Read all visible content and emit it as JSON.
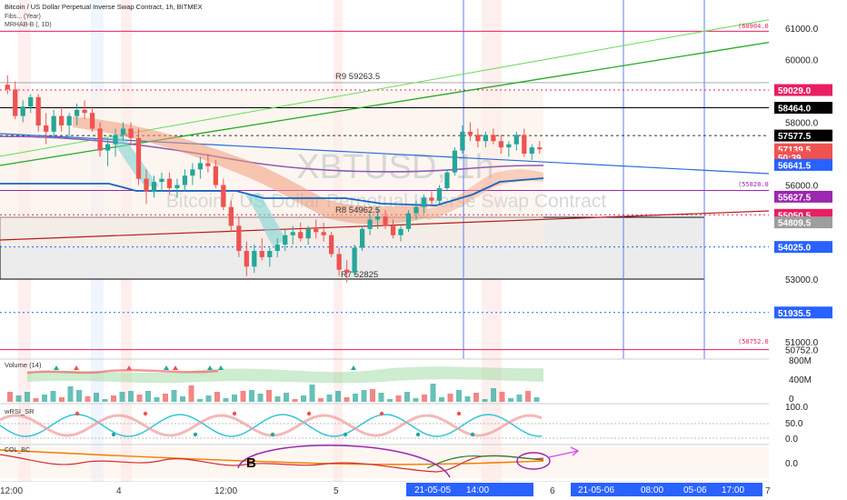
{
  "header": {
    "title": "Bitcoin / US Dollar Perpetual Inverse Swap Contract, 1h, BITMEX",
    "indicator_1": "Fibs... (Year)",
    "indicator_2": "MRHAB-B (, 1D)"
  },
  "watermark": {
    "symbol": "XBTUSD, 1h",
    "description": "Bitcoin / US Dollar Perpetual Inverse Swap Contract"
  },
  "colors": {
    "up": "#26a69a",
    "down": "#ef5350",
    "accent_blue": "#2962ff",
    "magenta": "#e91e63",
    "purple": "#9c27b0"
  },
  "chart_data": {
    "type": "candlestick",
    "symbol": "XBTUSD",
    "timeframe": "1h",
    "ylim": [
      50450,
      61900
    ],
    "y_axis_ticks": [
      "61000.0",
      "60000.0",
      "58000.0",
      "56000.0",
      "53000.0",
      "51000.0"
    ],
    "y_axis_values": [
      61000,
      60000,
      58000,
      56000,
      53000,
      51000
    ],
    "price_labels": [
      {
        "text": "59029.0",
        "value": 59029.0,
        "color": "#e91e63",
        "style": "fill"
      },
      {
        "text": "58464.0",
        "value": 58464.0,
        "color": "#000000",
        "style": "fill"
      },
      {
        "text": "57577.5",
        "value": 57577.5,
        "color": "#000000",
        "style": "fill"
      },
      {
        "text": "57139.5",
        "value": 57139.5,
        "color": "#ef5350",
        "style": "fill"
      },
      {
        "text": "50:39",
        "value": 56890,
        "color": "#ef5350",
        "style": "fill"
      },
      {
        "text": "56641.5",
        "value": 56641.5,
        "color": "#2962ff",
        "style": "fill"
      },
      {
        "text": "55627.5",
        "value": 55627.5,
        "color": "#9c27b0",
        "style": "fill"
      },
      {
        "text": "55050.5",
        "value": 55050.5,
        "color": "#e91e63",
        "style": "fill"
      },
      {
        "text": "54809.5",
        "value": 54809.5,
        "color": "#9e9e9e",
        "style": "fill"
      },
      {
        "text": "54025.0",
        "value": 54025.0,
        "color": "#2962ff",
        "style": "fill"
      },
      {
        "text": "51935.5",
        "value": 51935.5,
        "color": "#2962ff",
        "style": "fill"
      },
      {
        "text": "50752.0",
        "value": 50752.0,
        "color": "#e91e63",
        "style": "fill"
      }
    ],
    "fib_labels": [
      {
        "text": "(60904.0)",
        "value": 60904.0
      },
      {
        "text": "(55828.0)",
        "value": 55828.0
      },
      {
        "text": "(50752.0)",
        "value": 50752.0
      }
    ],
    "pivot_labels": [
      {
        "text": "R9 59263.5",
        "value": 59263.5
      },
      {
        "text": "R8 54962.5",
        "value": 54962.5
      },
      {
        "text": "R7 52825",
        "value": 52825
      }
    ],
    "x_axis_labels": [
      "12:00",
      "4",
      "12:00",
      "5",
      "6",
      "7"
    ],
    "x_axis_highlights": [
      "21-05-05",
      "14:00",
      "21-05-06",
      "08:00",
      "05-06",
      "17:00"
    ],
    "candles": [
      [
        59200,
        59500,
        58900,
        59050
      ],
      [
        59050,
        59300,
        58100,
        58200
      ],
      [
        58200,
        58700,
        58000,
        58500
      ],
      [
        58500,
        58900,
        58300,
        58800
      ],
      [
        58800,
        58900,
        57700,
        57900
      ],
      [
        57900,
        58300,
        57300,
        57700
      ],
      [
        57700,
        58400,
        57500,
        58200
      ],
      [
        58200,
        58500,
        57700,
        57900
      ],
      [
        57900,
        58300,
        57500,
        58200
      ],
      [
        58200,
        58600,
        57900,
        58400
      ],
      [
        58400,
        58700,
        58100,
        58300
      ],
      [
        58300,
        58500,
        57700,
        57800
      ],
      [
        57800,
        58000,
        56900,
        57100
      ],
      [
        57100,
        57500,
        56600,
        57300
      ],
      [
        57300,
        57800,
        56900,
        57600
      ],
      [
        57600,
        58000,
        57400,
        57800
      ],
      [
        57800,
        58000,
        57300,
        57500
      ],
      [
        57500,
        57800,
        56000,
        56200
      ],
      [
        56200,
        56500,
        55400,
        55800
      ],
      [
        55800,
        56300,
        55600,
        56100
      ],
      [
        56100,
        56400,
        55800,
        56200
      ],
      [
        56200,
        56400,
        55700,
        55900
      ],
      [
        55900,
        56200,
        55600,
        56000
      ],
      [
        56000,
        56500,
        55800,
        56300
      ],
      [
        56300,
        56700,
        56000,
        56500
      ],
      [
        56500,
        56900,
        56200,
        56700
      ],
      [
        56700,
        57000,
        56400,
        56600
      ],
      [
        56600,
        56800,
        55900,
        56000
      ],
      [
        56000,
        56200,
        55200,
        55300
      ],
      [
        55300,
        55500,
        54500,
        54700
      ],
      [
        54700,
        55000,
        53700,
        53900
      ],
      [
        53900,
        54200,
        53100,
        53400
      ],
      [
        53400,
        54100,
        53200,
        53900
      ],
      [
        53900,
        54300,
        53600,
        53700
      ],
      [
        53700,
        54000,
        53400,
        53900
      ],
      [
        53900,
        54300,
        53700,
        54100
      ],
      [
        54100,
        54600,
        53900,
        54400
      ],
      [
        54400,
        54700,
        54100,
        54500
      ],
      [
        54500,
        54800,
        54200,
        54300
      ],
      [
        54300,
        54700,
        54100,
        54600
      ],
      [
        54600,
        54900,
        54300,
        54500
      ],
      [
        54500,
        54800,
        54200,
        54400
      ],
      [
        54400,
        54500,
        53700,
        53800
      ],
      [
        53800,
        54000,
        53100,
        53300
      ],
      [
        53300,
        53600,
        52900,
        53200
      ],
      [
        53200,
        54100,
        53100,
        54000
      ],
      [
        54000,
        54700,
        53900,
        54600
      ],
      [
        54600,
        55100,
        54400,
        54900
      ],
      [
        54900,
        55300,
        54600,
        55000
      ],
      [
        55000,
        55200,
        54600,
        54700
      ],
      [
        54700,
        54900,
        54300,
        54400
      ],
      [
        54400,
        54700,
        54200,
        54600
      ],
      [
        54600,
        55200,
        54500,
        55100
      ],
      [
        55100,
        55500,
        54900,
        55300
      ],
      [
        55300,
        55700,
        55100,
        55600
      ],
      [
        55600,
        55800,
        55300,
        55500
      ],
      [
        55500,
        56000,
        55400,
        55900
      ],
      [
        55900,
        56500,
        55800,
        56400
      ],
      [
        56400,
        57200,
        56300,
        57100
      ],
      [
        57100,
        57900,
        57000,
        57700
      ],
      [
        57700,
        58000,
        57400,
        57600
      ],
      [
        57600,
        57800,
        57200,
        57400
      ],
      [
        57400,
        57700,
        57200,
        57600
      ],
      [
        57600,
        57800,
        57300,
        57400
      ],
      [
        57400,
        57600,
        57000,
        57200
      ],
      [
        57200,
        57400,
        56900,
        57300
      ],
      [
        57300,
        57700,
        57100,
        57600
      ],
      [
        57600,
        57800,
        56900,
        57000
      ],
      [
        57000,
        57300,
        56800,
        57200
      ],
      [
        57200,
        57400,
        57000,
        57140
      ]
    ],
    "volume": {
      "label": "Volume (14)",
      "ticks": [
        "800M",
        "400M",
        "0"
      ],
      "ymax": 800
    },
    "rsi": {
      "label": "wRSI_SR",
      "ticks": [
        "100.0",
        "50.0",
        "0.0"
      ]
    },
    "col": {
      "label": "COL_BC",
      "ticks": [
        "0.0"
      ]
    },
    "annotations": [
      {
        "text": "B"
      }
    ]
  }
}
